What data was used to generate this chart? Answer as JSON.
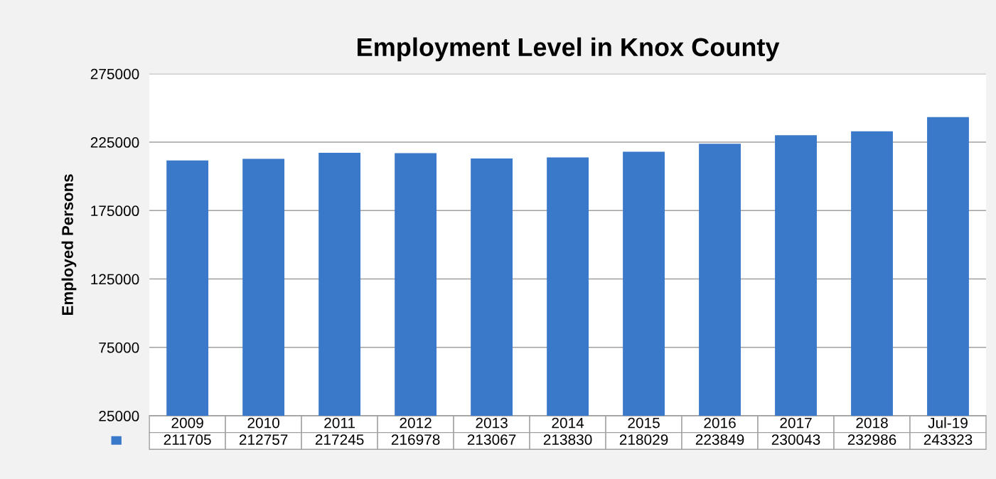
{
  "chart_data": {
    "type": "bar",
    "title": "Employment Level in Knox County",
    "ylabel": "Employed Persons",
    "categories": [
      "2009",
      "2010",
      "2011",
      "2012",
      "2013",
      "2014",
      "2015",
      "2016",
      "2017",
      "2018",
      "Jul-19"
    ],
    "values": [
      211705,
      212757,
      217245,
      216978,
      213067,
      213830,
      218029,
      223849,
      230043,
      232986,
      243323
    ],
    "color": "#3a78c9",
    "ylim": [
      25000,
      275000
    ],
    "yticks": [
      25000,
      75000,
      125000,
      175000,
      225000,
      275000
    ],
    "grid": "y",
    "data_labels": true
  }
}
